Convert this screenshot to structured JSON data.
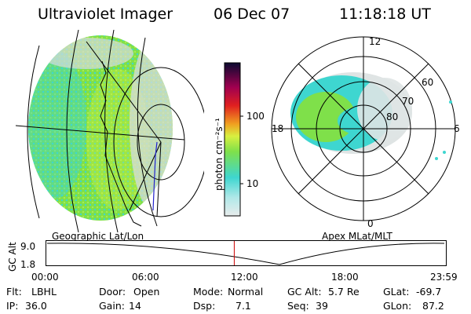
{
  "header": {
    "title": "Ultraviolet Imager",
    "date": "06 Dec 07",
    "time": "11:18:18 UT"
  },
  "left_panel": {
    "caption": "Geographic Lat/Lon"
  },
  "right_panel": {
    "caption": "Apex MLat/MLT",
    "mlt_labels": {
      "top": "12",
      "left": "18",
      "right": "6",
      "bottom": "0"
    },
    "lat_labels": [
      "60",
      "70",
      "80"
    ]
  },
  "colorbar": {
    "unit": "photon cm⁻²s⁻¹",
    "tick_labels": [
      "100",
      "10"
    ]
  },
  "altitude_strip": {
    "ylabel": "GC Alt",
    "y_ticks": [
      "9.0",
      "1.8"
    ],
    "x_ticks": [
      "00:00",
      "06:00",
      "12:00",
      "18:00",
      "23:59"
    ],
    "marker_time": "11:18",
    "marker_color": "#cc0000"
  },
  "status": {
    "flt_label": "Flt:",
    "flt_value": "LBHL",
    "ip_label": "IP:",
    "ip_value": "36.0",
    "door_label": "Door:",
    "door_value": "Open",
    "gain_label": "Gain:",
    "gain_value": "14",
    "mode_label": "Mode:",
    "mode_value": "Normal",
    "dsp_label": "Dsp:",
    "dsp_value": "7.1",
    "gcalt_label": "GC Alt:",
    "gcalt_value": "5.7 Re",
    "seq_label": "Seq:",
    "seq_value": "39",
    "glat_label": "GLat:",
    "glat_value": "-69.7",
    "glon_label": "GLon:",
    "glon_value": "87.2"
  },
  "colors": {
    "aurora_green": "#7fe04a",
    "aurora_cyan": "#3ed6d0",
    "aurora_yellow": "#d8f040",
    "dim_gray": "#d8dcdc"
  }
}
